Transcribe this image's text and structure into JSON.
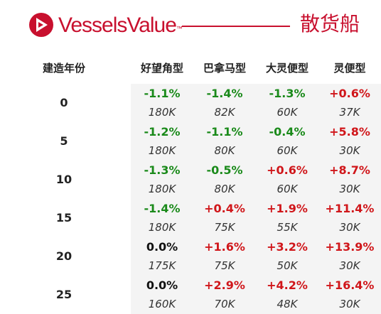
{
  "header": {
    "brand": "VesselsValue",
    "trademark": "™",
    "category": "散货船",
    "brand_color": "#c8102e"
  },
  "columns": {
    "age": "建造年份",
    "capesize": "好望角型",
    "panamax": "巴拿马型",
    "supramax": "大灵便型",
    "handysize": "灵便型"
  },
  "colors": {
    "up": "#d0161a",
    "down": "#1a8a1a",
    "flat": "#111111"
  },
  "rows": [
    {
      "age": "0",
      "pct": [
        "-1.1%",
        "-1.4%",
        "-1.3%",
        "+0.6%"
      ],
      "val": [
        "180K",
        "82K",
        "60K",
        "37K"
      ],
      "dir": [
        "down",
        "down",
        "down",
        "up"
      ]
    },
    {
      "age": "5",
      "pct": [
        "-1.2%",
        "-1.1%",
        "-0.4%",
        "+5.8%"
      ],
      "val": [
        "180K",
        "80K",
        "60K",
        "30K"
      ],
      "dir": [
        "down",
        "down",
        "down",
        "up"
      ]
    },
    {
      "age": "10",
      "pct": [
        "-1.3%",
        "-0.5%",
        "+0.6%",
        "+8.7%"
      ],
      "val": [
        "180K",
        "80K",
        "60K",
        "30K"
      ],
      "dir": [
        "down",
        "down",
        "up",
        "up"
      ]
    },
    {
      "age": "15",
      "pct": [
        "-1.4%",
        "+0.4%",
        "+1.9%",
        "+11.4%"
      ],
      "val": [
        "180K",
        "75K",
        "55K",
        "30K"
      ],
      "dir": [
        "down",
        "up",
        "up",
        "up"
      ]
    },
    {
      "age": "20",
      "pct": [
        "0.0%",
        "+1.6%",
        "+3.2%",
        "+13.9%"
      ],
      "val": [
        "175K",
        "75K",
        "50K",
        "30K"
      ],
      "dir": [
        "flat",
        "up",
        "up",
        "up"
      ]
    },
    {
      "age": "25",
      "pct": [
        "0.0%",
        "+2.9%",
        "+4.2%",
        "+16.4%"
      ],
      "val": [
        "160K",
        "70K",
        "48K",
        "30K"
      ],
      "dir": [
        "flat",
        "up",
        "up",
        "up"
      ]
    }
  ]
}
